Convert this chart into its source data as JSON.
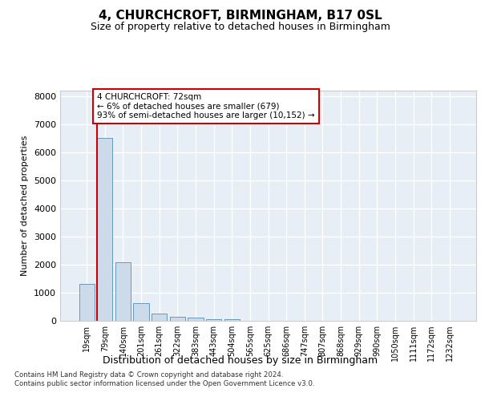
{
  "title1": "4, CHURCHCROFT, BIRMINGHAM, B17 0SL",
  "title2": "Size of property relative to detached houses in Birmingham",
  "xlabel": "Distribution of detached houses by size in Birmingham",
  "ylabel": "Number of detached properties",
  "categories": [
    "19sqm",
    "79sqm",
    "140sqm",
    "201sqm",
    "261sqm",
    "322sqm",
    "383sqm",
    "443sqm",
    "504sqm",
    "565sqm",
    "625sqm",
    "686sqm",
    "747sqm",
    "807sqm",
    "868sqm",
    "929sqm",
    "990sqm",
    "1050sqm",
    "1111sqm",
    "1172sqm",
    "1232sqm"
  ],
  "values": [
    1300,
    6500,
    2080,
    620,
    250,
    130,
    100,
    65,
    65,
    0,
    0,
    0,
    0,
    0,
    0,
    0,
    0,
    0,
    0,
    0,
    0
  ],
  "bar_color": "#ccdaea",
  "bar_edge_color": "#6699bb",
  "vline_bar_index": 1,
  "vline_color": "#cc0000",
  "annotation_line1": "4 CHURCHCROFT: 72sqm",
  "annotation_line2": "← 6% of detached houses are smaller (679)",
  "annotation_line3": "93% of semi-detached houses are larger (10,152) →",
  "annotation_box_color": "#ffffff",
  "annotation_box_edge": "#cc0000",
  "ylim": [
    0,
    8200
  ],
  "yticks": [
    0,
    1000,
    2000,
    3000,
    4000,
    5000,
    6000,
    7000,
    8000
  ],
  "background_color": "#e8eef5",
  "grid_color": "#ffffff",
  "footer1": "Contains HM Land Registry data © Crown copyright and database right 2024.",
  "footer2": "Contains public sector information licensed under the Open Government Licence v3.0."
}
